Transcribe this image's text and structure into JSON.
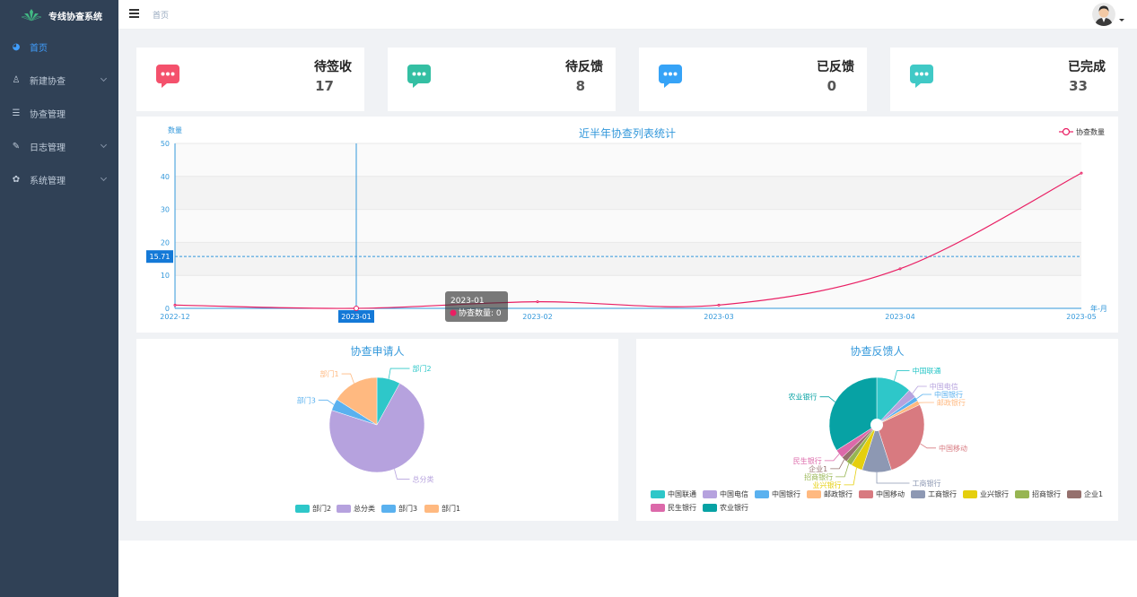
{
  "app": {
    "title": "专线协查系统"
  },
  "sidebar": {
    "items": [
      {
        "label": "首页",
        "icon": "dashboard-icon",
        "active": true,
        "has_arrow": false
      },
      {
        "label": "新建协查",
        "icon": "user-icon",
        "active": false,
        "has_arrow": true
      },
      {
        "label": "协查管理",
        "icon": "list-icon",
        "active": false,
        "has_arrow": false
      },
      {
        "label": "日志管理",
        "icon": "edit-icon",
        "active": false,
        "has_arrow": true
      },
      {
        "label": "系统管理",
        "icon": "gear-icon",
        "active": false,
        "has_arrow": true
      }
    ]
  },
  "header": {
    "breadcrumb": "首页",
    "avatar": "avatar"
  },
  "cards": [
    {
      "title": "待签收",
      "value": "17",
      "color": "#f4516c",
      "icon": "message-icon"
    },
    {
      "title": "待反馈",
      "value": "8",
      "color": "#34bfa3",
      "icon": "message-icon"
    },
    {
      "title": "已反馈",
      "value": "0",
      "color": "#36a3f7",
      "icon": "message-icon"
    },
    {
      "title": "已完成",
      "value": "33",
      "color": "#40c9c6",
      "icon": "message-icon"
    }
  ],
  "chart_data": [
    {
      "type": "line",
      "title": "近半年协查列表统计",
      "ylabel": "数量",
      "xlabel": "年-月",
      "x": [
        "2022-12",
        "2023-01",
        "2023-02",
        "2023-03",
        "2023-04",
        "2023-05"
      ],
      "series": [
        {
          "name": "协查数量",
          "values": [
            1,
            0,
            2,
            1,
            12,
            41
          ]
        }
      ],
      "ylim": [
        0,
        50
      ],
      "yticks": [
        0,
        10,
        20,
        30,
        40,
        50
      ],
      "color": "#e91e63",
      "legend": "top-right",
      "axis_pointer": {
        "x_label": "2023-01",
        "y_label": "15.71"
      },
      "tooltip": {
        "title": "2023-01",
        "text": "协查数量: 0"
      }
    },
    {
      "type": "pie",
      "title": "协查申请人",
      "legend": "bottom",
      "slices": [
        {
          "label": "部门2",
          "value": 8,
          "color": "#2ec7c9"
        },
        {
          "label": "总分类",
          "value": 72,
          "color": "#b6a2de"
        },
        {
          "label": "部门3",
          "value": 4,
          "color": "#5ab1ef"
        },
        {
          "label": "部门1",
          "value": 16,
          "color": "#ffb980"
        }
      ]
    },
    {
      "type": "pie",
      "title": "协查反馈人",
      "legend": "bottom",
      "slices": [
        {
          "label": "中国联通",
          "value": 12,
          "color": "#2ec7c9"
        },
        {
          "label": "中国电信",
          "value": 3,
          "color": "#b6a2de"
        },
        {
          "label": "中国银行",
          "value": 1.5,
          "color": "#5ab1ef"
        },
        {
          "label": "邮政银行",
          "value": 1.5,
          "color": "#ffb980"
        },
        {
          "label": "中国移动",
          "value": 27,
          "color": "#d87a80"
        },
        {
          "label": "工商银行",
          "value": 10,
          "color": "#8d98b3"
        },
        {
          "label": "业兴银行",
          "value": 4,
          "color": "#e5cf0d"
        },
        {
          "label": "招商银行",
          "value": 2,
          "color": "#97b552"
        },
        {
          "label": "企业1",
          "value": 2,
          "color": "#95706d"
        },
        {
          "label": "民生银行",
          "value": 3,
          "color": "#dc69aa"
        },
        {
          "label": "农业银行",
          "value": 34,
          "color": "#07a2a4"
        }
      ]
    }
  ]
}
